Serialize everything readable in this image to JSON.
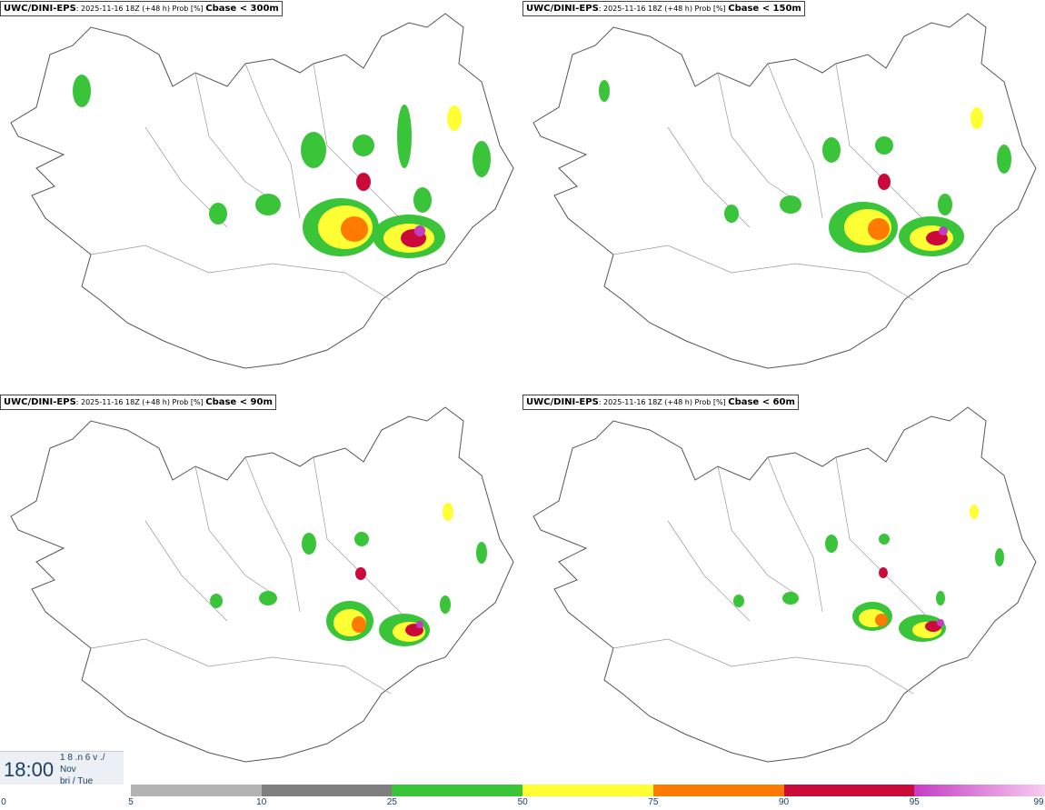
{
  "panels": [
    {
      "model": "UWC/DINI-EPS",
      "run": ": 2025-11-16 18Z (+48 h) Prob [%]",
      "variable": "Cbase < 300m"
    },
    {
      "model": "UWC/DINI-EPS",
      "run": ": 2025-11-16 18Z (+48 h) Prob [%]",
      "variable": "Cbase < 150m"
    },
    {
      "model": "UWC/DINI-EPS",
      "run": ": 2025-11-16 18Z (+48 h) Prob [%]",
      "variable": "Cbase < 90m"
    },
    {
      "model": "UWC/DINI-EPS",
      "run": ": 2025-11-16 18Z (+48 h) Prob [%]",
      "variable": "Cbase < 60m"
    }
  ],
  "valid_time": {
    "time": "18:00",
    "line1": "1 8 .n 6 v ./",
    "line2": "Nov",
    "line3": "bri / Tue"
  },
  "legend": {
    "ticks": [
      "0",
      "5",
      "10",
      "25",
      "50",
      "75",
      "90",
      "95",
      "99"
    ],
    "colors": [
      "#b3b3b3",
      "#7f7f7f",
      "#3ac43a",
      "#ffff33",
      "#ff7a00",
      "#cc0a3a",
      "#c43cc4"
    ]
  }
}
